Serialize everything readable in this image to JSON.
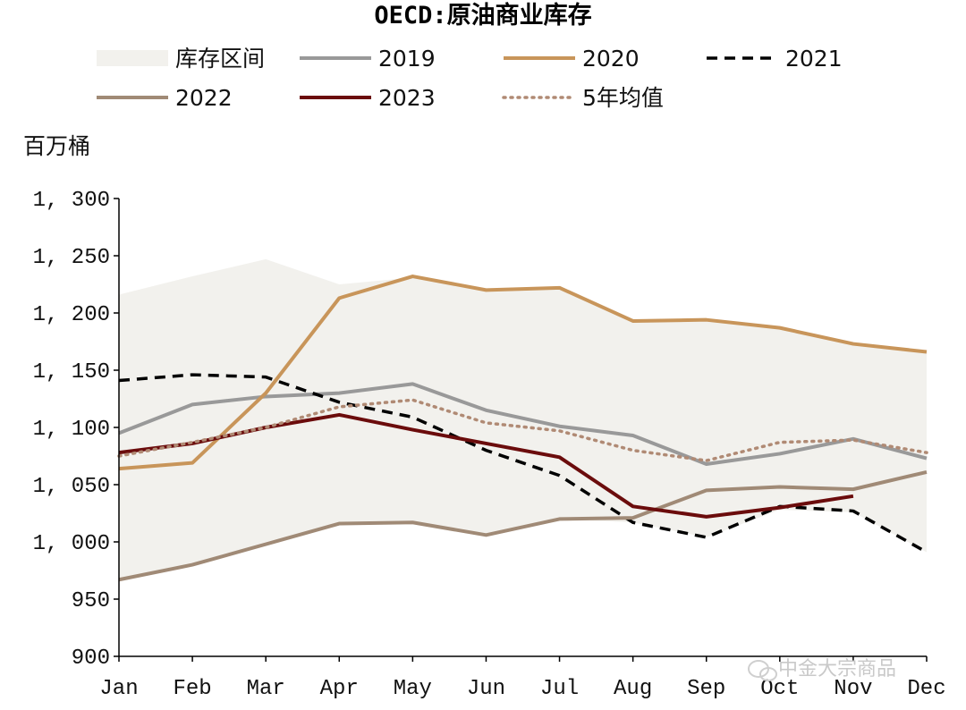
{
  "chart_data": {
    "type": "line",
    "title": "OECD:原油商业库存",
    "ylabel": "百万桶",
    "ylim": [
      900,
      1300
    ],
    "yticks": [
      "900",
      "950",
      "1, 000",
      "1, 050",
      "1, 100",
      "1, 150",
      "1, 200",
      "1, 250",
      "1, 300"
    ],
    "categories": [
      "Jan",
      "Feb",
      "Mar",
      "Apr",
      "May",
      "Jun",
      "Jul",
      "Aug",
      "Sep",
      "Oct",
      "Nov",
      "Dec"
    ],
    "grid": false,
    "legend_position": "top",
    "band": {
      "name": "库存区间",
      "color": "#f2f1ed",
      "upper": [
        1216,
        1232,
        1247,
        1225,
        1231,
        1220,
        1222,
        1193,
        1194,
        1187,
        1173,
        1166
      ],
      "lower": [
        967,
        980,
        1000,
        1016,
        1017,
        1006,
        1020,
        1017,
        1004,
        1028,
        1026,
        991
      ]
    },
    "series": [
      {
        "name": "2019",
        "color": "#999999",
        "style": "solid",
        "values": [
          1095,
          1120,
          1127,
          1130,
          1138,
          1115,
          1101,
          1093,
          1068,
          1077,
          1090,
          1073
        ]
      },
      {
        "name": "2020",
        "color": "#c8955a",
        "style": "solid",
        "values": [
          1064,
          1069,
          1130,
          1213,
          1232,
          1220,
          1222,
          1193,
          1194,
          1187,
          1173,
          1166
        ]
      },
      {
        "name": "2021",
        "color": "#000000",
        "style": "dashed",
        "values": [
          1141,
          1146,
          1144,
          1122,
          1109,
          1080,
          1058,
          1017,
          1004,
          1031,
          1027,
          991
        ]
      },
      {
        "name": "2022",
        "color": "#a08a76",
        "style": "solid",
        "values": [
          967,
          980,
          998,
          1016,
          1017,
          1006,
          1020,
          1021,
          1045,
          1048,
          1046,
          1061
        ]
      },
      {
        "name": "2023",
        "color": "#6b0c0c",
        "style": "solid",
        "values": [
          1078,
          1086,
          1100,
          1111,
          1098,
          1086,
          1074,
          1031,
          1022,
          1030,
          1040,
          null
        ]
      },
      {
        "name": "5年均值",
        "color": "#b08a74",
        "style": "dotted",
        "values": [
          1075,
          1087,
          1100,
          1118,
          1124,
          1104,
          1097,
          1080,
          1071,
          1087,
          1089,
          1078
        ]
      }
    ]
  },
  "watermark": {
    "text": "中金大宗商品"
  },
  "legend_order": [
    "库存区间",
    "2019",
    "2020",
    "2021",
    "2022",
    "2023",
    "5年均值"
  ]
}
